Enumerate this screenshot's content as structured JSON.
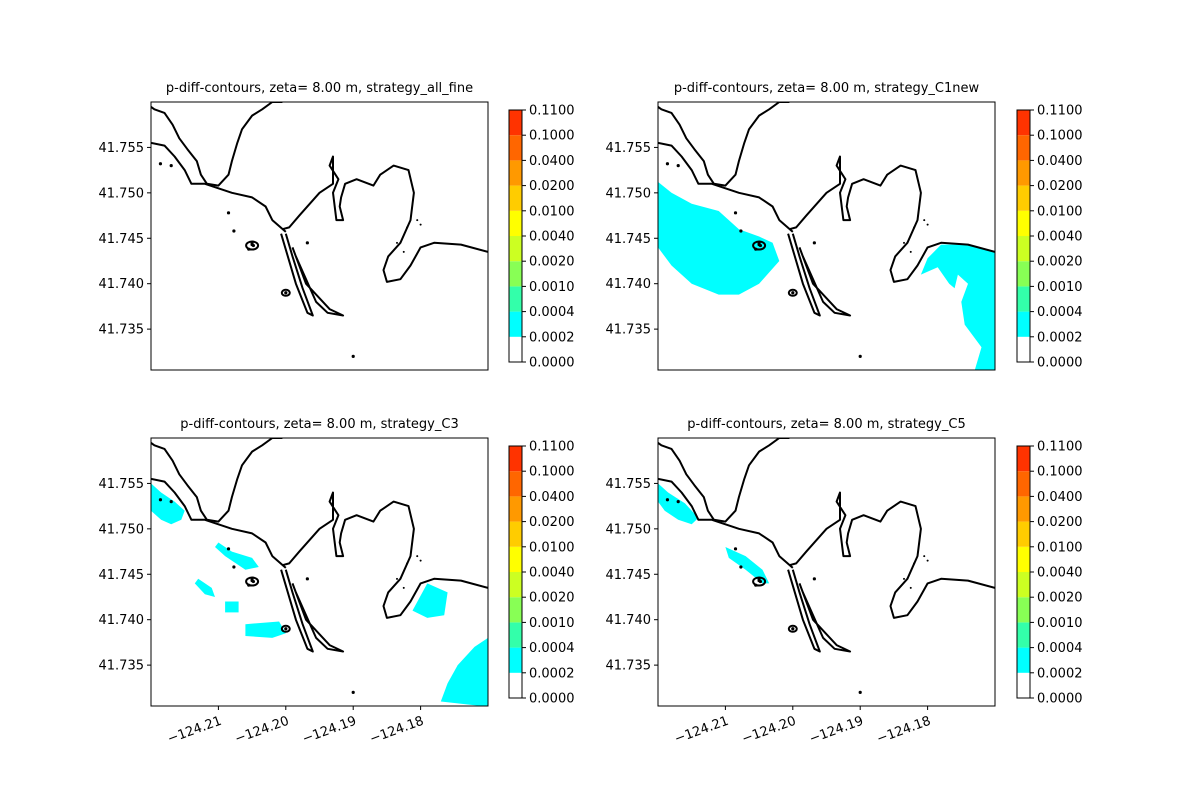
{
  "chart_data": {
    "type": "heatmap",
    "colorbar": {
      "levels": [
        "0.0000",
        "0.0002",
        "0.0004",
        "0.0010",
        "0.0020",
        "0.0040",
        "0.0100",
        "0.0200",
        "0.0400",
        "0.1000",
        "0.1100"
      ],
      "colors": [
        "#ffffff",
        "#00ffff",
        "#33ffaa",
        "#88ff55",
        "#ccff22",
        "#ffff00",
        "#ffcc00",
        "#ff9900",
        "#ff6600",
        "#ff3300",
        "#ff0000"
      ]
    },
    "xlim": [
      -124.22,
      -124.17
    ],
    "ylim": [
      41.7305,
      41.76
    ],
    "x_ticks": [
      -124.21,
      -124.2,
      -124.19,
      -124.18
    ],
    "x_tick_labels": [
      "−124.21",
      "−124.20",
      "−124.19",
      "−124.18"
    ],
    "y_ticks": [
      41.735,
      41.74,
      41.745,
      41.75,
      41.755
    ],
    "y_tick_labels": [
      "41.735",
      "41.740",
      "41.745",
      "41.750",
      "41.755"
    ],
    "shoreline": {
      "north_coast": [
        [
          -124.22,
          41.7555
        ],
        [
          -124.218,
          41.7552
        ],
        [
          -124.2165,
          41.754
        ],
        [
          -124.215,
          41.7525
        ],
        [
          -124.214,
          41.751
        ],
        [
          -124.212,
          41.751
        ],
        [
          -124.21,
          41.7505
        ],
        [
          -124.208,
          41.75
        ],
        [
          -124.205,
          41.7495
        ],
        [
          -124.203,
          41.7485
        ],
        [
          -124.202,
          41.747
        ],
        [
          -124.2,
          41.7457
        ]
      ],
      "river": [
        [
          -124.1675,
          41.7425
        ],
        [
          -124.17,
          41.7435
        ],
        [
          -124.174,
          41.7443
        ],
        [
          -124.178,
          41.7445
        ],
        [
          -124.18,
          41.744
        ],
        [
          -124.1815,
          41.742
        ],
        [
          -124.183,
          41.7405
        ],
        [
          -124.185,
          41.7402
        ],
        [
          -124.1855,
          41.7415
        ],
        [
          -124.1848,
          41.743
        ],
        [
          -124.183,
          41.7445
        ],
        [
          -124.1815,
          41.747
        ],
        [
          -124.181,
          41.75
        ],
        [
          -124.1818,
          41.7525
        ],
        [
          -124.184,
          41.753
        ],
        [
          -124.186,
          41.752
        ],
        [
          -124.187,
          41.7508
        ],
        [
          -124.1895,
          41.7515
        ],
        [
          -124.1912,
          41.751
        ],
        [
          -124.1918,
          41.7495
        ],
        [
          -124.192,
          41.7485
        ],
        [
          -124.1915,
          41.747
        ],
        [
          -124.1925,
          41.747
        ],
        [
          -124.193,
          41.75
        ],
        [
          -124.1922,
          41.7515
        ],
        [
          -124.1935,
          41.753
        ],
        [
          -124.193,
          41.754
        ],
        [
          -124.193,
          41.751
        ],
        [
          -124.195,
          41.75
        ],
        [
          -124.198,
          41.7475
        ],
        [
          -124.1995,
          41.7462
        ],
        [
          -124.2005,
          41.746
        ]
      ],
      "hill": [
        [
          -124.221,
          41.76
        ],
        [
          -124.2195,
          41.7592
        ],
        [
          -124.218,
          41.7588
        ],
        [
          -124.2168,
          41.7575
        ],
        [
          -124.2158,
          41.756
        ],
        [
          -124.2146,
          41.7548
        ],
        [
          -124.2132,
          41.7535
        ],
        [
          -124.2126,
          41.752
        ],
        [
          -124.2117,
          41.751
        ],
        [
          -124.21,
          41.7508
        ],
        [
          -124.2085,
          41.752
        ],
        [
          -124.208,
          41.7535
        ],
        [
          -124.2072,
          41.7555
        ],
        [
          -124.2065,
          41.757
        ],
        [
          -124.205,
          41.7585
        ],
        [
          -124.2035,
          41.7592
        ],
        [
          -124.202,
          41.76
        ],
        [
          -124.2005,
          41.76
        ]
      ],
      "jetty_west": [
        [
          -124.2007,
          41.7455
        ],
        [
          -124.1985,
          41.74
        ],
        [
          -124.1968,
          41.7368
        ],
        [
          -124.196,
          41.7365
        ],
        [
          -124.1975,
          41.7395
        ],
        [
          -124.199,
          41.743
        ],
        [
          -124.2,
          41.7455
        ]
      ],
      "jetty_east": [
        [
          -124.1985,
          41.743
        ],
        [
          -124.1955,
          41.738
        ],
        [
          -124.1938,
          41.7368
        ],
        [
          -124.1915,
          41.7365
        ],
        [
          -124.1935,
          41.7372
        ],
        [
          -124.197,
          41.74
        ],
        [
          -124.199,
          41.744
        ]
      ],
      "islands": [
        [
          -124.2186,
          41.7532
        ],
        [
          -124.217,
          41.753
        ],
        [
          -124.2085,
          41.7478
        ],
        [
          -124.2077,
          41.7458
        ],
        [
          -124.205,
          41.7445
        ],
        [
          -124.2048,
          41.7442
        ],
        [
          -124.2055,
          41.7438
        ],
        [
          -124.1968,
          41.7445
        ],
        [
          -124.2,
          41.739
        ],
        [
          -124.205,
          41.7443
        ],
        [
          -124.19,
          41.732
        ]
      ],
      "bay_dots": [
        [
          -124.1835,
          41.7445
        ],
        [
          -124.1825,
          41.7435
        ],
        [
          -124.18,
          41.7465
        ],
        [
          -124.1805,
          41.747
        ],
        [
          -124.182,
          41.7462
        ]
      ]
    },
    "panels": [
      {
        "title": "p-diff-contours, zeta= 8.00 m, strategy_all_fine",
        "regions": []
      },
      {
        "title": "p-diff-contours, zeta= 8.00 m, strategy_C1new",
        "regions": [
          [
            [
              -124.22,
              41.7512
            ],
            [
              -124.218,
              41.75
            ],
            [
              -124.215,
              41.7488
            ],
            [
              -124.211,
              41.748
            ],
            [
              -124.208,
              41.746
            ],
            [
              -124.205,
              41.7452
            ],
            [
              -124.203,
              41.7445
            ],
            [
              -124.202,
              41.7425
            ],
            [
              -124.205,
              41.74
            ],
            [
              -124.208,
              41.7388
            ],
            [
              -124.211,
              41.7388
            ],
            [
              -124.215,
              41.74
            ],
            [
              -124.218,
              41.742
            ],
            [
              -124.22,
              41.744
            ]
          ],
          [
            [
              -124.178,
              41.7443
            ],
            [
              -124.174,
              41.7443
            ],
            [
              -124.17,
              41.7435
            ],
            [
              -124.17,
              41.7305
            ],
            [
              -124.173,
              41.7305
            ],
            [
              -124.172,
              41.733
            ],
            [
              -124.1745,
              41.7355
            ],
            [
              -124.175,
              41.738
            ],
            [
              -124.174,
              41.74
            ],
            [
              -124.1755,
              41.741
            ],
            [
              -124.176,
              41.7395
            ],
            [
              -124.1768,
              41.74
            ],
            [
              -124.1785,
              41.7418
            ],
            [
              -124.181,
              41.741
            ],
            [
              -124.18,
              41.7428
            ]
          ]
        ]
      },
      {
        "title": "p-diff-contours, zeta= 8.00 m, strategy_C3",
        "regions": [
          [
            [
              -124.22,
              41.755
            ],
            [
              -124.2185,
              41.754
            ],
            [
              -124.2165,
              41.753
            ],
            [
              -124.215,
              41.752
            ],
            [
              -124.2155,
              41.751
            ],
            [
              -124.217,
              41.7505
            ],
            [
              -124.2185,
              41.751
            ],
            [
              -124.22,
              41.752
            ]
          ],
          [
            [
              -124.21,
              41.7485
            ],
            [
              -124.208,
              41.7475
            ],
            [
              -124.205,
              41.7468
            ],
            [
              -124.204,
              41.7458
            ],
            [
              -124.206,
              41.7455
            ],
            [
              -124.209,
              41.747
            ],
            [
              -124.2105,
              41.748
            ]
          ],
          [
            [
              -124.213,
              41.7445
            ],
            [
              -124.211,
              41.7435
            ],
            [
              -124.2105,
              41.7425
            ],
            [
              -124.212,
              41.7428
            ],
            [
              -124.2135,
              41.744
            ]
          ],
          [
            [
              -124.209,
              41.742
            ],
            [
              -124.207,
              41.742
            ],
            [
              -124.207,
              41.7408
            ],
            [
              -124.209,
              41.7408
            ]
          ],
          [
            [
              -124.206,
              41.7395
            ],
            [
              -124.201,
              41.7398
            ],
            [
              -124.2,
              41.7385
            ],
            [
              -124.202,
              41.738
            ],
            [
              -124.206,
              41.7382
            ]
          ],
          [
            [
              -124.179,
              41.744
            ],
            [
              -124.176,
              41.743
            ],
            [
              -124.1765,
              41.7405
            ],
            [
              -124.179,
              41.7402
            ],
            [
              -124.1812,
              41.741
            ]
          ],
          [
            [
              -124.17,
              41.738
            ],
            [
              -124.172,
              41.737
            ],
            [
              -124.1745,
              41.735
            ],
            [
              -124.176,
              41.733
            ],
            [
              -124.177,
              41.731
            ],
            [
              -124.171,
              41.7305
            ],
            [
              -124.17,
              41.7305
            ]
          ]
        ]
      },
      {
        "title": "p-diff-contours, zeta= 8.00 m, strategy_C5",
        "regions": [
          [
            [
              -124.22,
              41.755
            ],
            [
              -124.2185,
              41.754
            ],
            [
              -124.216,
              41.7528
            ],
            [
              -124.214,
              41.7512
            ],
            [
              -124.215,
              41.7505
            ],
            [
              -124.217,
              41.751
            ],
            [
              -124.219,
              41.752
            ],
            [
              -124.22,
              41.753
            ]
          ],
          [
            [
              -124.21,
              41.748
            ],
            [
              -124.207,
              41.747
            ],
            [
              -124.2045,
              41.7455
            ],
            [
              -124.2035,
              41.744
            ],
            [
              -124.2045,
              41.744
            ],
            [
              -124.207,
              41.7455
            ],
            [
              -124.2095,
              41.7468
            ]
          ]
        ]
      }
    ]
  }
}
